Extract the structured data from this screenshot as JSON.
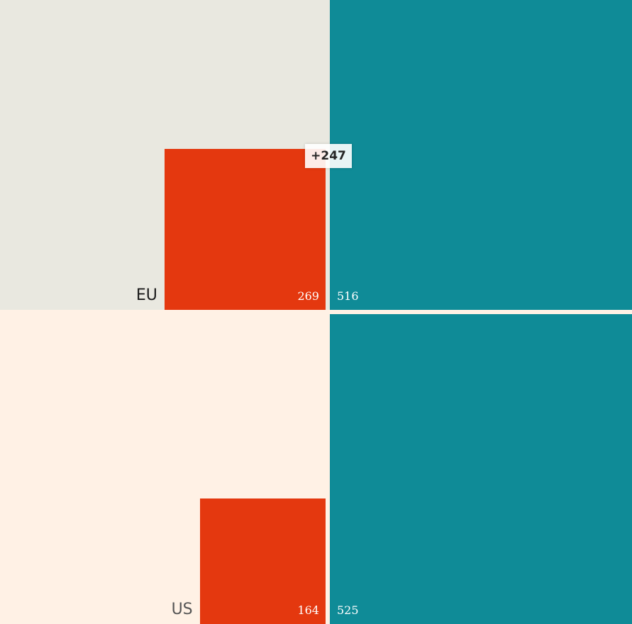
{
  "chart_data": {
    "type": "bar",
    "categories": [
      "EU",
      "US"
    ],
    "series": [
      {
        "values": [
          269,
          164
        ],
        "color": "#e4380f"
      },
      {
        "values": [
          516,
          525
        ],
        "color": "#0f8b97"
      }
    ],
    "difference_label": "+247",
    "panel_colors": [
      "#e9e8e0",
      "#fff1e5"
    ]
  }
}
